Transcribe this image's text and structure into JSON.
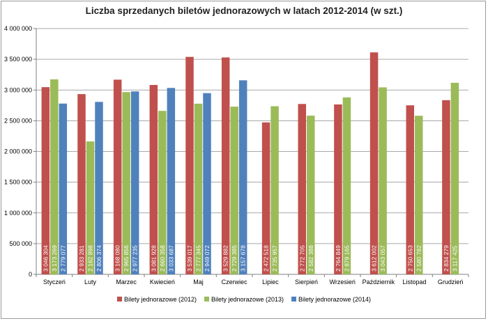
{
  "chart_data": {
    "type": "bar",
    "title": "Liczba sprzedanych biletów jednorazowych w latach 2012-2014 (w szt.)",
    "xlabel": "",
    "ylabel": "",
    "ylim": [
      0,
      4000000
    ],
    "y_ticks": [
      "0",
      "500 000",
      "1 000 000",
      "1 500 000",
      "2 000 000",
      "2 500 000",
      "3 000 000",
      "3 500 000",
      "4 000 000"
    ],
    "grid": true,
    "legend_position": "bottom",
    "categories": [
      "Styczeń",
      "Luty",
      "Marzec",
      "Kwiecień",
      "Maj",
      "Czerwiec",
      "Lipiec",
      "Sierpień",
      "Wrzesień",
      "Październik",
      "Listopad",
      "Grudzień"
    ],
    "series": [
      {
        "name": "Bilety jednorazowe (2012)",
        "color": "#c0504d",
        "values": [
          3046304,
          2933281,
          3168080,
          3081928,
          3539017,
          3529882,
          2472518,
          2772705,
          2764849,
          3612002,
          2750653,
          2834279
        ],
        "labels": [
          "3 046 304",
          "2 933 281",
          "3 168 080",
          "3 081 928",
          "3 539 017",
          "3 529 882",
          "2 472 518",
          "2 772 705",
          "2 764 849",
          "3 612 002",
          "2 750 653",
          "2 834 279"
        ]
      },
      {
        "name": "Bilety jednorazowe (2013)",
        "color": "#9bbb59",
        "values": [
          3173269,
          2162898,
          2965856,
          2660358,
          2777345,
          2729385,
          2735957,
          2582388,
          2879165,
          3043057,
          2580782,
          3117425
        ],
        "labels": [
          "3 173 269",
          "2 162 898",
          "2 965 856",
          "2 660 358",
          "2 777 345",
          "2 729 385",
          "2 735 957",
          "2 582 388",
          "2 879 165",
          "3 043 057",
          "2 580 782",
          "3 117 425"
        ]
      },
      {
        "name": "Bilety jednorazowe (2014)",
        "color": "#4f81bd",
        "values": [
          2779077,
          2806374,
          2977235,
          3033687,
          2949072,
          3157678,
          null,
          null,
          null,
          null,
          null,
          null
        ],
        "labels": [
          "2 779 077",
          "2 806 374",
          "2 977 235",
          "3 033 687",
          "2 949 072",
          "3 157 678",
          null,
          null,
          null,
          null,
          null,
          null
        ]
      }
    ]
  }
}
